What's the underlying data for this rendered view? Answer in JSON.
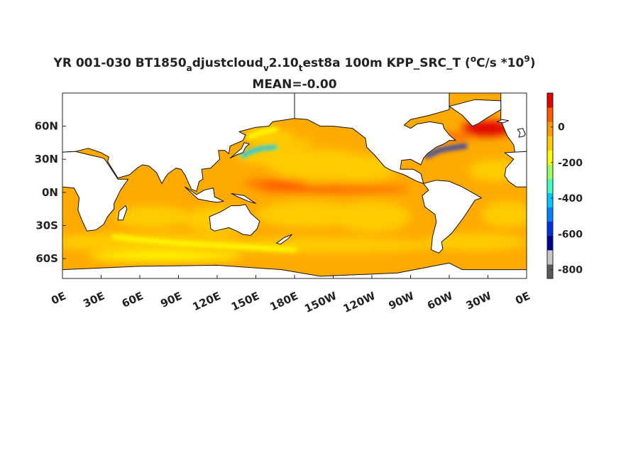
{
  "chart_data": {
    "type": "heatmap",
    "title_parts": [
      "YR 001-030 BT1850",
      "a",
      "djustcloud",
      "v",
      "2.10",
      "t",
      "est8a 100m KPP_SRC_T (",
      "o",
      "C/s *10",
      "9",
      ")"
    ],
    "title_line2": "MEAN=-0.00",
    "x_ticks": [
      "0E",
      "30E",
      "60E",
      "90E",
      "120E",
      "150E",
      "180E",
      "150W",
      "120W",
      "90W",
      "60W",
      "30W",
      "0E"
    ],
    "y_ticks": [
      "60N",
      "30N",
      "0N",
      "30S",
      "60S"
    ],
    "y_tick_values": [
      60,
      30,
      0,
      -30,
      -60
    ],
    "xlim": [
      0,
      360
    ],
    "ylim": [
      -78,
      90
    ],
    "colorbar": {
      "ticks": [
        "0",
        "-200",
        "-400",
        "-600",
        "-800"
      ],
      "tick_values": [
        0,
        -200,
        -400,
        -600,
        -800
      ],
      "range": [
        -850,
        190
      ],
      "colors": [
        "#5a5a5a",
        "#c8c8c8",
        "#00008f",
        "#0030e0",
        "#0080ff",
        "#00c8ff",
        "#40ffc0",
        "#a0ff60",
        "#ffff00",
        "#ffcc00",
        "#ff9900",
        "#ff5a00",
        "#e00000"
      ]
    },
    "background_value_approx": -60,
    "features": [
      {
        "region": "Kuroshio extension",
        "lon": 145,
        "lat": 37,
        "value_approx": -300
      },
      {
        "region": "Gulf Stream",
        "lon": 295,
        "lat": 39,
        "value_approx": -650
      },
      {
        "region": "Southern Ocean band",
        "lon": 60,
        "lat": -45,
        "value_approx": -150
      },
      {
        "region": "North Atlantic subpolar",
        "lon": 330,
        "lat": 58,
        "value_approx": 120
      },
      {
        "region": "Equatorial Pacific",
        "lon": 220,
        "lat": 0,
        "value_approx": 30
      }
    ]
  }
}
